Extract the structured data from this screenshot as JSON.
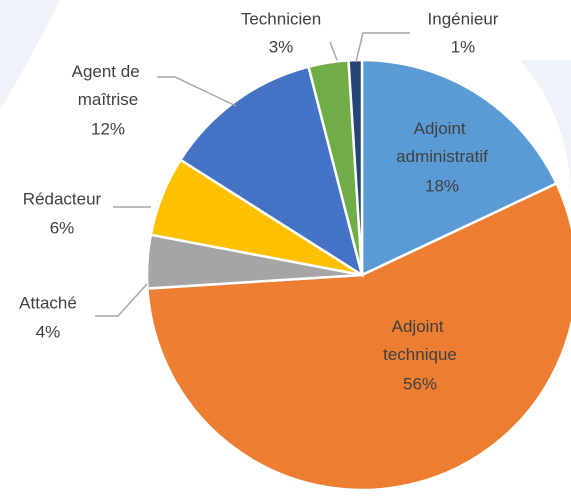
{
  "chart_data": {
    "type": "pie",
    "categories": [
      "Adjoint administratif",
      "Adjoint technique",
      "Attaché",
      "Rédacteur",
      "Agent de maîtrise",
      "Technicien",
      "Ingénieur"
    ],
    "values": [
      18,
      56,
      4,
      6,
      12,
      3,
      1
    ],
    "value_labels": [
      "18%",
      "56%",
      "4%",
      "6%",
      "12%",
      "3%",
      "1%"
    ],
    "colors": [
      "#5b9bd5",
      "#ed7d31",
      "#a5a5a5",
      "#ffc000",
      "#4472c4",
      "#70ad47",
      "#264478"
    ]
  }
}
